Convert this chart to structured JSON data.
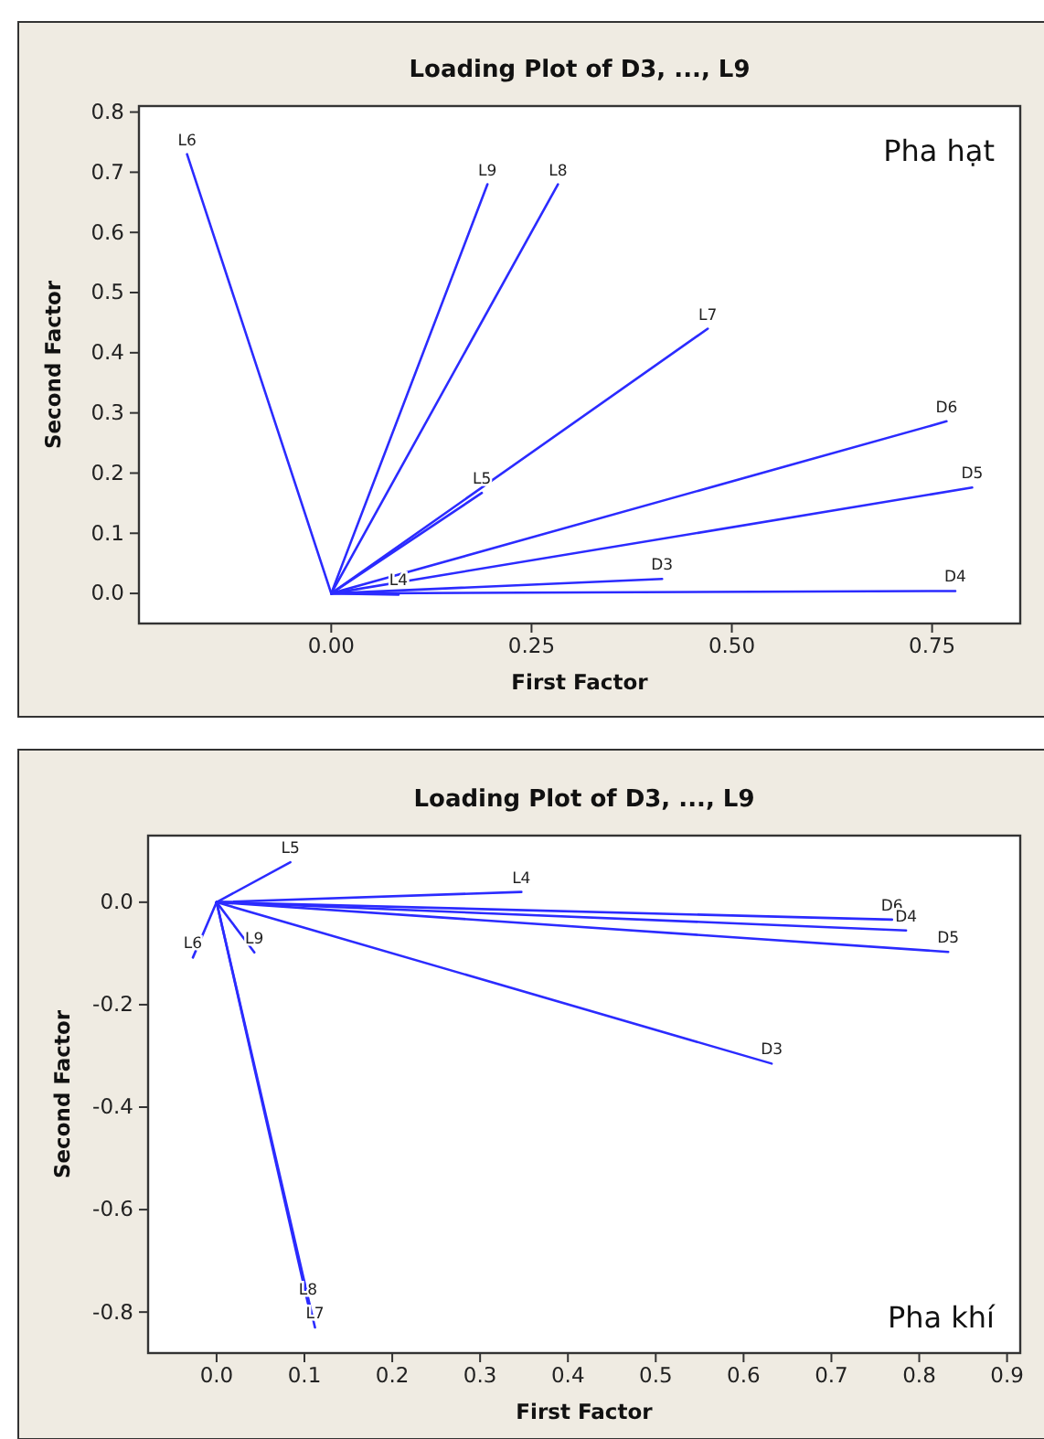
{
  "chart_data": [
    {
      "type": "line",
      "title": "Loading Plot of D3, ..., L9",
      "xlabel": "First Factor",
      "ylabel": "Second Factor",
      "annotations": [
        "Pha hạt"
      ],
      "grid": false,
      "xlim": [
        -0.24,
        0.86
      ],
      "ylim": [
        -0.05,
        0.81
      ],
      "xticks": [
        {
          "value": 0,
          "label": "0.00"
        },
        {
          "value": 0.25,
          "label": "0.25"
        },
        {
          "value": 0.5,
          "label": "0.50"
        },
        {
          "value": 0.75,
          "label": "0.75"
        }
      ],
      "yticks": [
        {
          "value": 0,
          "label": "0.0"
        },
        {
          "value": 0.1,
          "label": "0.1"
        },
        {
          "value": 0.2,
          "label": "0.2"
        },
        {
          "value": 0.3,
          "label": "0.3"
        },
        {
          "value": 0.4,
          "label": "0.4"
        },
        {
          "value": 0.5,
          "label": "0.5"
        },
        {
          "value": 0.6,
          "label": "0.6"
        },
        {
          "value": 0.7,
          "label": "0.7"
        },
        {
          "value": 0.8,
          "label": "0.8"
        }
      ],
      "series": [
        {
          "name": "L6",
          "color": "#2b2bff",
          "x": [
            0,
            -0.18
          ],
          "values": [
            0,
            0.73
          ]
        },
        {
          "name": "L9",
          "color": "#2b2bff",
          "x": [
            0,
            0.195
          ],
          "values": [
            0,
            0.68
          ]
        },
        {
          "name": "L8",
          "color": "#2b2bff",
          "x": [
            0,
            0.283
          ],
          "values": [
            0,
            0.68
          ]
        },
        {
          "name": "L7",
          "color": "#2b2bff",
          "x": [
            0,
            0.47
          ],
          "values": [
            0,
            0.44
          ]
        },
        {
          "name": "D6",
          "color": "#2b2bff",
          "x": [
            0,
            0.768
          ],
          "values": [
            0,
            0.286
          ]
        },
        {
          "name": "D5",
          "color": "#2b2bff",
          "x": [
            0,
            0.8
          ],
          "values": [
            0,
            0.176
          ]
        },
        {
          "name": "D3",
          "color": "#2b2bff",
          "x": [
            0,
            0.413
          ],
          "values": [
            0,
            0.024
          ]
        },
        {
          "name": "D4",
          "color": "#2b2bff",
          "x": [
            0,
            0.779
          ],
          "values": [
            0,
            0.004
          ]
        },
        {
          "name": "L5",
          "color": "#2b2bff",
          "x": [
            0,
            0.188
          ],
          "values": [
            0,
            0.167
          ]
        },
        {
          "name": "L4",
          "color": "#2b2bff",
          "x": [
            0,
            0.084
          ],
          "values": [
            0,
            -0.002
          ]
        }
      ]
    },
    {
      "type": "line",
      "title": "Loading Plot of D3, ..., L9",
      "xlabel": "First Factor",
      "ylabel": "Second Factor",
      "annotations": [
        "Pha khí"
      ],
      "grid": false,
      "xlim": [
        -0.078,
        0.915
      ],
      "ylim": [
        -0.88,
        0.13
      ],
      "xticks": [
        {
          "value": 0,
          "label": "0.0"
        },
        {
          "value": 0.1,
          "label": "0.1"
        },
        {
          "value": 0.2,
          "label": "0.2"
        },
        {
          "value": 0.3,
          "label": "0.3"
        },
        {
          "value": 0.4,
          "label": "0.4"
        },
        {
          "value": 0.5,
          "label": "0.5"
        },
        {
          "value": 0.6,
          "label": "0.6"
        },
        {
          "value": 0.7,
          "label": "0.7"
        },
        {
          "value": 0.8,
          "label": "0.8"
        },
        {
          "value": 0.9,
          "label": "0.9"
        }
      ],
      "yticks": [
        {
          "value": -0.8,
          "label": "-0.8"
        },
        {
          "value": -0.6,
          "label": "-0.6"
        },
        {
          "value": -0.4,
          "label": "-0.4"
        },
        {
          "value": -0.2,
          "label": "-0.2"
        },
        {
          "value": 0,
          "label": "0.0"
        }
      ],
      "series": [
        {
          "name": "L5",
          "color": "#2b2bff",
          "x": [
            0,
            0.084
          ],
          "values": [
            0,
            0.078
          ]
        },
        {
          "name": "L4",
          "color": "#2b2bff",
          "x": [
            0,
            0.347
          ],
          "values": [
            0,
            0.02
          ]
        },
        {
          "name": "D6",
          "color": "#2b2bff",
          "x": [
            0,
            0.769
          ],
          "values": [
            0,
            -0.034
          ]
        },
        {
          "name": "D4",
          "color": "#2b2bff",
          "x": [
            0,
            0.785
          ],
          "values": [
            0,
            -0.055
          ]
        },
        {
          "name": "D5",
          "color": "#2b2bff",
          "x": [
            0,
            0.833
          ],
          "values": [
            0,
            -0.097
          ]
        },
        {
          "name": "D3",
          "color": "#2b2bff",
          "x": [
            0,
            0.632
          ],
          "values": [
            0,
            -0.315
          ]
        },
        {
          "name": "L6",
          "color": "#2b2bff",
          "x": [
            0,
            -0.027
          ],
          "values": [
            0,
            -0.108
          ]
        },
        {
          "name": "L9",
          "color": "#2b2bff",
          "x": [
            0,
            0.043
          ],
          "values": [
            0,
            -0.098
          ]
        },
        {
          "name": "L8",
          "color": "#2b2bff",
          "x": [
            0,
            0.104
          ],
          "values": [
            0,
            -0.783
          ]
        },
        {
          "name": "L7",
          "color": "#2b2bff",
          "x": [
            0,
            0.112
          ],
          "values": [
            0,
            -0.83
          ]
        }
      ]
    }
  ]
}
